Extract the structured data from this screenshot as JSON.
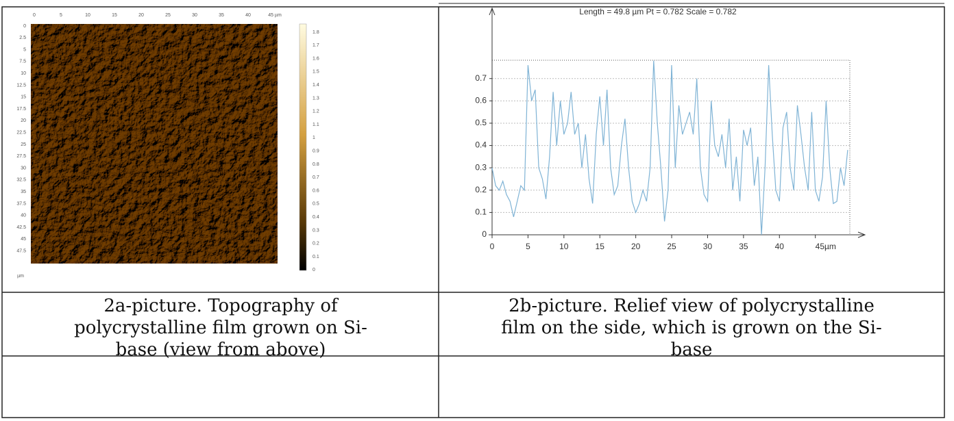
{
  "afm_image": {
    "top_labels": [
      "0",
      "5",
      "10",
      "15",
      "20",
      "25",
      "30",
      "35",
      "40",
      "45 µm"
    ],
    "left_labels": [
      "0",
      "2.5",
      "5",
      "7.5",
      "10",
      "12.5",
      "15",
      "17.5",
      "20",
      "22.5",
      "25",
      "27.5",
      "30",
      "32.5",
      "35",
      "37.5",
      "40",
      "42.5",
      "45",
      "47.5"
    ],
    "unit": "µm",
    "colorbar_labels": [
      "1.8",
      "1.7",
      "1.6",
      "1.5",
      "1.4",
      "1.3",
      "1.2",
      "1.1",
      "1",
      "0.9",
      "0.8",
      "0.7",
      "0.6",
      "0.5",
      "0.4",
      "0.3",
      "0.2",
      "0.1",
      "0"
    ]
  },
  "chart_data": {
    "type": "line",
    "title": "Length = 49.8 µm  Pt = 0.782  Scale = 0.782",
    "x": [
      0,
      0.5,
      1,
      1.5,
      2,
      2.5,
      3,
      3.5,
      4,
      4.5,
      5,
      5.5,
      6,
      6.5,
      7,
      7.5,
      8,
      8.5,
      9,
      9.5,
      10,
      10.5,
      11,
      11.5,
      12,
      12.5,
      13,
      13.5,
      14,
      14.5,
      15,
      15.5,
      16,
      16.5,
      17,
      17.5,
      18,
      18.5,
      19,
      19.5,
      20,
      20.5,
      21,
      21.5,
      22,
      22.5,
      23,
      23.5,
      24,
      24.5,
      25,
      25.5,
      26,
      26.5,
      27,
      27.5,
      28,
      28.5,
      29,
      29.5,
      30,
      30.5,
      31,
      31.5,
      32,
      32.5,
      33,
      33.5,
      34,
      34.5,
      35,
      35.5,
      36,
      36.5,
      37,
      37.5,
      38,
      38.5,
      39,
      39.5,
      40,
      40.5,
      41,
      41.5,
      42,
      42.5,
      43,
      43.5,
      44,
      44.5,
      45,
      45.5,
      46,
      46.5,
      47,
      47.5,
      48,
      48.5,
      49,
      49.5
    ],
    "series": [
      {
        "color": "#7fb3d5",
        "values": [
          0.3,
          0.22,
          0.2,
          0.24,
          0.18,
          0.15,
          0.08,
          0.15,
          0.22,
          0.2,
          0.76,
          0.6,
          0.65,
          0.3,
          0.25,
          0.16,
          0.35,
          0.64,
          0.4,
          0.6,
          0.45,
          0.5,
          0.64,
          0.45,
          0.5,
          0.3,
          0.45,
          0.25,
          0.14,
          0.45,
          0.62,
          0.4,
          0.65,
          0.3,
          0.18,
          0.22,
          0.4,
          0.52,
          0.3,
          0.15,
          0.1,
          0.14,
          0.2,
          0.15,
          0.3,
          0.78,
          0.5,
          0.3,
          0.06,
          0.2,
          0.76,
          0.3,
          0.58,
          0.45,
          0.5,
          0.55,
          0.45,
          0.7,
          0.3,
          0.18,
          0.15,
          0.6,
          0.4,
          0.35,
          0.45,
          0.3,
          0.52,
          0.2,
          0.35,
          0.15,
          0.47,
          0.4,
          0.48,
          0.22,
          0.35,
          0.0,
          0.3,
          0.76,
          0.45,
          0.2,
          0.15,
          0.48,
          0.55,
          0.3,
          0.2,
          0.58,
          0.45,
          0.3,
          0.2,
          0.55,
          0.2,
          0.15,
          0.26,
          0.6,
          0.3,
          0.14,
          0.15,
          0.3,
          0.22,
          0.38
        ]
      }
    ],
    "xlim": [
      0,
      49.8
    ],
    "ylim": [
      0,
      0.782
    ],
    "xticks": [
      0,
      5,
      10,
      15,
      20,
      25,
      30,
      35,
      40,
      {
        "value": 45,
        "label": "45µm"
      }
    ],
    "yticks": [
      0,
      0.1,
      0.2,
      0.3,
      0.4,
      0.5,
      0.6,
      0.7
    ],
    "grid": true
  },
  "captions": [
    [
      "2a-picture. Topography of",
      "polycrystalline film grown on Si-",
      "base (view from above)"
    ],
    [
      "2b-picture. Relief view of polycrystalline",
      "film on the side, which is grown on the Si-",
      "base"
    ]
  ]
}
